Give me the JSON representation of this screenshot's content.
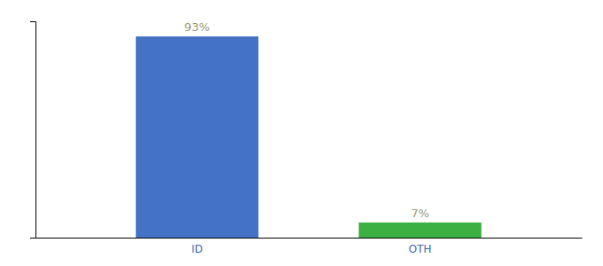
{
  "chart_data": {
    "type": "bar",
    "categories": [
      "ID",
      "OTH"
    ],
    "values": [
      93,
      7
    ],
    "value_labels": [
      "93%",
      "7%"
    ],
    "colors": [
      "#4472c4",
      "#3cb043"
    ],
    "ylim": [
      0,
      100
    ],
    "grid": false,
    "data_labels": true,
    "tick_labels": "x"
  }
}
